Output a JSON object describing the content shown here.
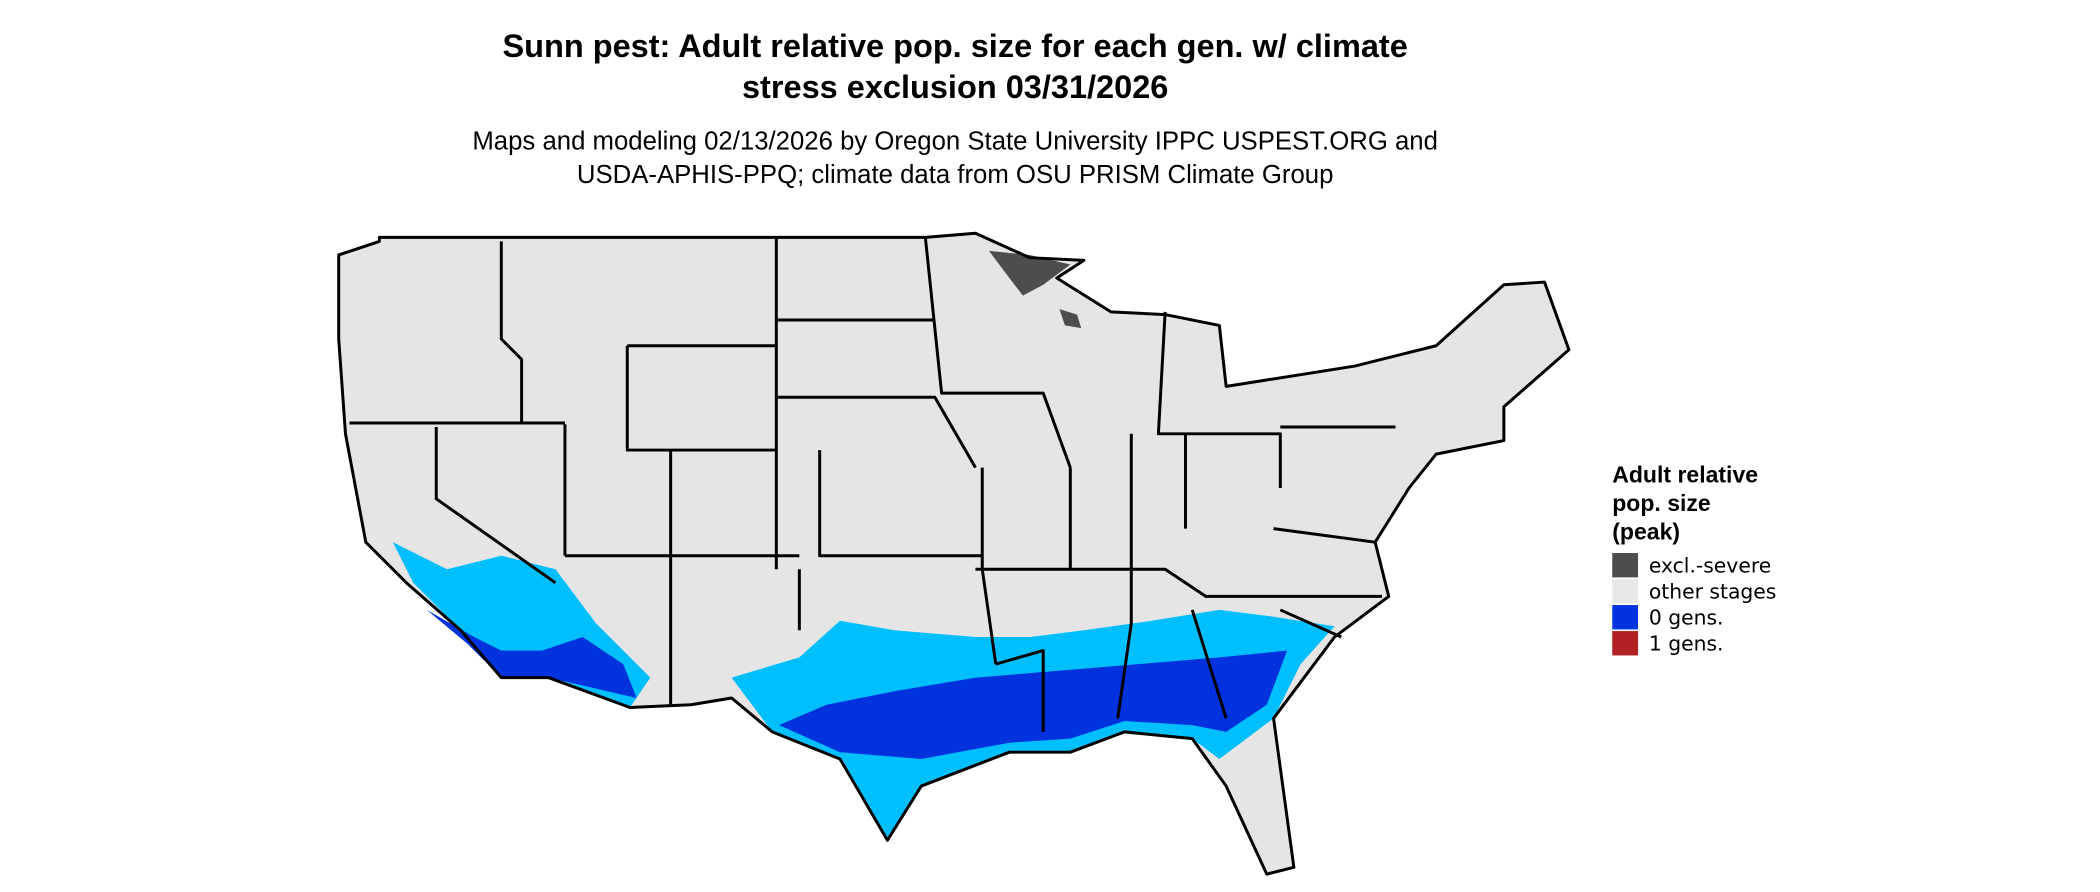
{
  "title": [
    "Sunn pest: Adult relative pop. size for each gen. w/ climate",
    "stress exclusion 03/31/2026"
  ],
  "subtitle": [
    "Maps and modeling 02/13/2026 by Oregon State University IPPC USPEST.ORG and",
    "USDA-APHIS-PPQ; climate data from OSU PRISM Climate Group"
  ],
  "legend": {
    "title": [
      "Adult relative",
      "pop. size",
      "(peak)"
    ],
    "items": [
      {
        "label": "excl.-severe",
        "color": "#4d4d4d"
      },
      {
        "label": "other stages",
        "color": "#e8e8e8"
      },
      {
        "label": "0 gens.",
        "color": "#0033dd"
      },
      {
        "label": "1 gens.",
        "color": "#b22222"
      }
    ]
  }
}
